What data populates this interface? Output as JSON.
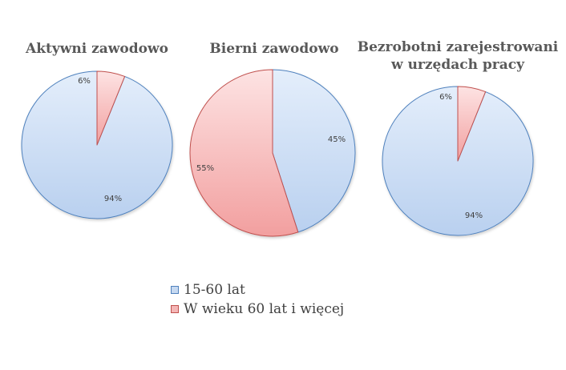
{
  "chart_data": [
    {
      "type": "pie",
      "title": "Aktywni zawodowo",
      "series": [
        {
          "name": "15-60 lat",
          "value": 94,
          "label": "94%"
        },
        {
          "name": "W wieku 60 lat i więcej",
          "value": 6,
          "label": "6%"
        }
      ]
    },
    {
      "type": "pie",
      "title": "Bierni zawodowo",
      "series": [
        {
          "name": "15-60 lat",
          "value": 45,
          "label": "45%"
        },
        {
          "name": "W wieku 60 lat i więcej",
          "value": 55,
          "label": "55%"
        }
      ]
    },
    {
      "type": "pie",
      "title": "Bezrobotni zarejestrowani w urzędach pracy",
      "title_lines": [
        "Bezrobotni zarejestrowani",
        "w urzędach pracy"
      ],
      "series": [
        {
          "name": "15-60 lat",
          "value": 94,
          "label": "94%"
        },
        {
          "name": "W wieku 60 lat i więcej",
          "value": 6,
          "label": "6%"
        }
      ]
    }
  ],
  "legend": [
    {
      "label": "15-60 lat",
      "color": "#c6d9f1",
      "border": "#4f81bd"
    },
    {
      "label": "W wieku 60 lat i więcej",
      "color": "#f4b6b6",
      "border": "#c0504d"
    }
  ],
  "colors": {
    "blue_fill_light": "#e4eefb",
    "blue_fill_dark": "#b9d0ef",
    "blue_stroke": "#4f81bd",
    "red_fill_light": "#fde3e3",
    "red_fill_dark": "#f29f9f",
    "red_stroke": "#c0504d"
  }
}
